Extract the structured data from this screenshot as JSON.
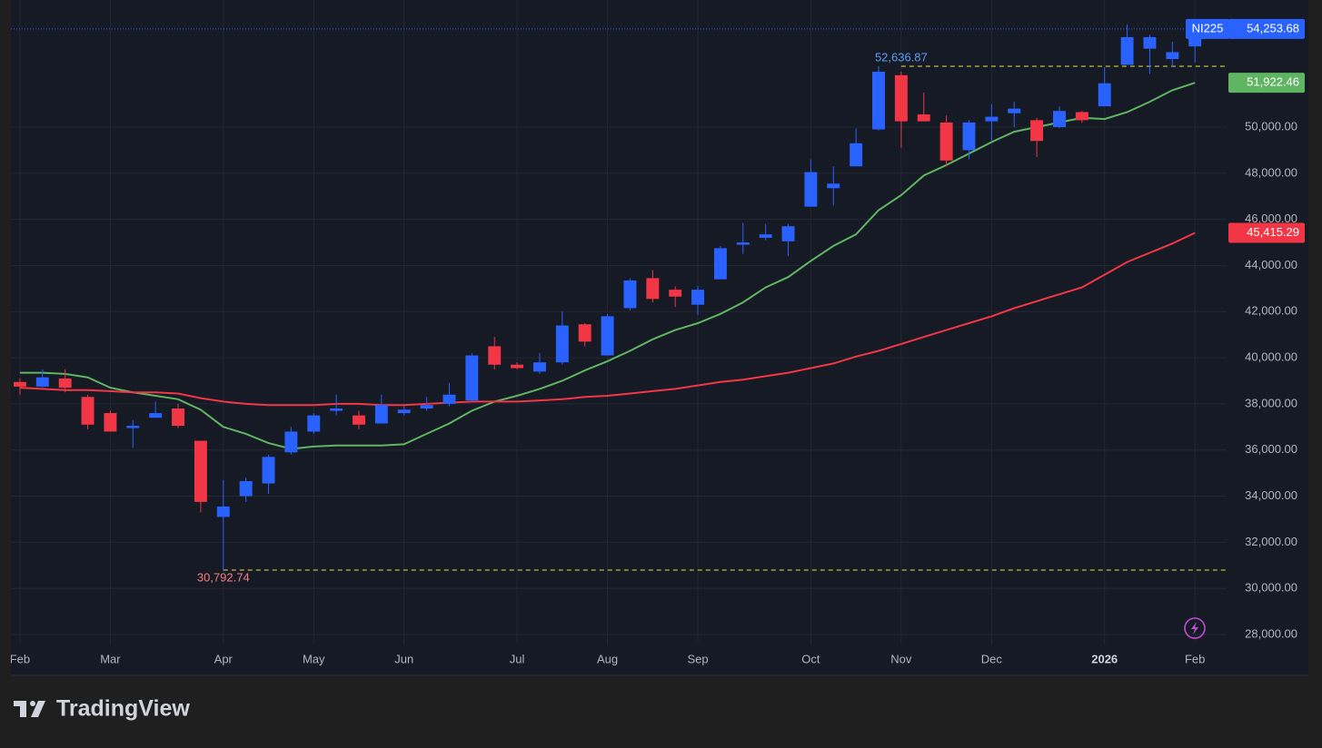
{
  "chart_data": {
    "type": "candlestick",
    "symbol": "NI225",
    "candles": {
      "open": [
        38950,
        38750,
        39100,
        38300,
        37600,
        36950,
        37400,
        37800,
        36400,
        33100,
        34000,
        34550,
        35900,
        36800,
        37700,
        37500,
        37150,
        37600,
        37800,
        38000,
        38150,
        40500,
        39700,
        39400,
        39800,
        41450,
        40100,
        42150,
        43450,
        42950,
        42300,
        43400,
        44900,
        45200,
        45050,
        46550,
        47350,
        48300,
        49900,
        52250,
        50550,
        50200,
        49000,
        50250,
        50600,
        50300,
        50000,
        50650,
        50900,
        52700,
        53400,
        52950,
        53500
      ],
      "high": [
        39100,
        39500,
        39500,
        38400,
        37700,
        37300,
        38100,
        38000,
        36400,
        34700,
        34800,
        35800,
        37000,
        37600,
        38400,
        37700,
        38400,
        37900,
        38300,
        38900,
        40200,
        40900,
        39800,
        40200,
        42000,
        41500,
        41900,
        43450,
        43800,
        43100,
        43100,
        44850,
        45850,
        45800,
        45800,
        48600,
        48300,
        49950,
        52636.87,
        52400,
        51500,
        50500,
        50300,
        51000,
        51100,
        50400,
        50900,
        50700,
        52600,
        54450,
        54000,
        53700,
        54500
      ],
      "low": [
        38400,
        38700,
        38500,
        36900,
        36800,
        36100,
        37400,
        36950,
        33300,
        30792.74,
        33750,
        34100,
        35800,
        36700,
        37500,
        36900,
        37150,
        37500,
        37700,
        37900,
        38100,
        39500,
        39500,
        39300,
        39700,
        40500,
        40100,
        42050,
        42400,
        42200,
        41850,
        43400,
        44500,
        45100,
        44400,
        46550,
        46600,
        48300,
        49850,
        49100,
        50250,
        48300,
        48600,
        49400,
        50000,
        48700,
        49950,
        50200,
        50900,
        52700,
        52300,
        52600,
        52800
      ],
      "close": [
        38750,
        39150,
        38700,
        37100,
        36800,
        37050,
        37600,
        37050,
        33750,
        33550,
        34650,
        35700,
        36800,
        37500,
        37800,
        37100,
        37950,
        37750,
        37950,
        38400,
        40100,
        39700,
        39550,
        39800,
        41400,
        40700,
        41800,
        43350,
        42550,
        42650,
        42950,
        44750,
        45000,
        45350,
        45700,
        48050,
        47550,
        49300,
        52400,
        50250,
        50250,
        48550,
        50200,
        50450,
        50800,
        49400,
        50700,
        50300,
        51900,
        53900,
        53900,
        53250,
        54253.68
      ],
      "up_color": "#2962ff",
      "down_color": "#f23645"
    },
    "last_price": {
      "value": 54253.68,
      "label": "54,253.68"
    },
    "lines": [
      {
        "color": "#5fb562",
        "values": [
          39350,
          39350,
          39300,
          39150,
          38700,
          38500,
          38350,
          38200,
          37750,
          37000,
          36700,
          36300,
          36050,
          36150,
          36200,
          36200,
          36200,
          36250,
          36700,
          37150,
          37700,
          38100,
          38350,
          38650,
          39000,
          39450,
          39850,
          40300,
          40800,
          41200,
          41500,
          41900,
          42400,
          43050,
          43500,
          44200,
          44850,
          45350,
          46400,
          47050,
          47900,
          48350,
          48850,
          49350,
          49800,
          50000,
          50200,
          50400,
          50350,
          50650,
          51100,
          51600,
          51922.46
        ],
        "last_label": "51,922.46"
      },
      {
        "color": "#f23645",
        "values": [
          38700,
          38650,
          38600,
          38600,
          38550,
          38500,
          38500,
          38450,
          38250,
          38100,
          38000,
          37950,
          37950,
          37950,
          38000,
          38000,
          37950,
          37950,
          38000,
          38050,
          38100,
          38100,
          38100,
          38150,
          38200,
          38300,
          38350,
          38450,
          38550,
          38650,
          38800,
          38950,
          39050,
          39200,
          39350,
          39550,
          39750,
          40050,
          40300,
          40600,
          40900,
          41200,
          41500,
          41800,
          42150,
          42450,
          42750,
          43050,
          43600,
          44150,
          44550,
          44950,
          45415.29
        ],
        "last_label": "45,415.29"
      }
    ],
    "annotations": [
      {
        "value": 52636.87,
        "label": "52,636.87",
        "from": 39,
        "color": "#5b9cf6"
      },
      {
        "value": 30792.74,
        "label": "30,792.74",
        "from": 9,
        "color": "#f77c80"
      }
    ],
    "xlim": [
      -0.4,
      53.4
    ],
    "xticks": [
      {
        "value": 0,
        "label": "Feb"
      },
      {
        "value": 4,
        "label": "Mar"
      },
      {
        "value": 9,
        "label": "Apr"
      },
      {
        "value": 13,
        "label": "May"
      },
      {
        "value": 17,
        "label": "Jun"
      },
      {
        "value": 22,
        "label": "Jul"
      },
      {
        "value": 26,
        "label": "Aug"
      },
      {
        "value": 30,
        "label": "Sep"
      },
      {
        "value": 35,
        "label": "Oct"
      },
      {
        "value": 39,
        "label": "Nov"
      },
      {
        "value": 43,
        "label": "Dec"
      },
      {
        "value": 48,
        "label": "2026"
      },
      {
        "value": 52,
        "label": "Feb"
      }
    ],
    "ylim": [
      26308,
      55510
    ],
    "yticks": [
      {
        "value": 28000,
        "label": "28,000.00"
      },
      {
        "value": 30000,
        "label": "30,000.00"
      },
      {
        "value": 32000,
        "label": "32,000.00"
      },
      {
        "value": 34000,
        "label": "34,000.00"
      },
      {
        "value": 36000,
        "label": "36,000.00"
      },
      {
        "value": 38000,
        "label": "38,000.00"
      },
      {
        "value": 40000,
        "label": "40,000.00"
      },
      {
        "value": 42000,
        "label": "42,000.00"
      },
      {
        "value": 44000,
        "label": "44,000.00"
      },
      {
        "value": 46000,
        "label": "46,000.00"
      },
      {
        "value": 48000,
        "label": "48,000.00"
      },
      {
        "value": 50000,
        "label": "50,000.00"
      }
    ],
    "grid": true
  },
  "brand": "TradingView"
}
